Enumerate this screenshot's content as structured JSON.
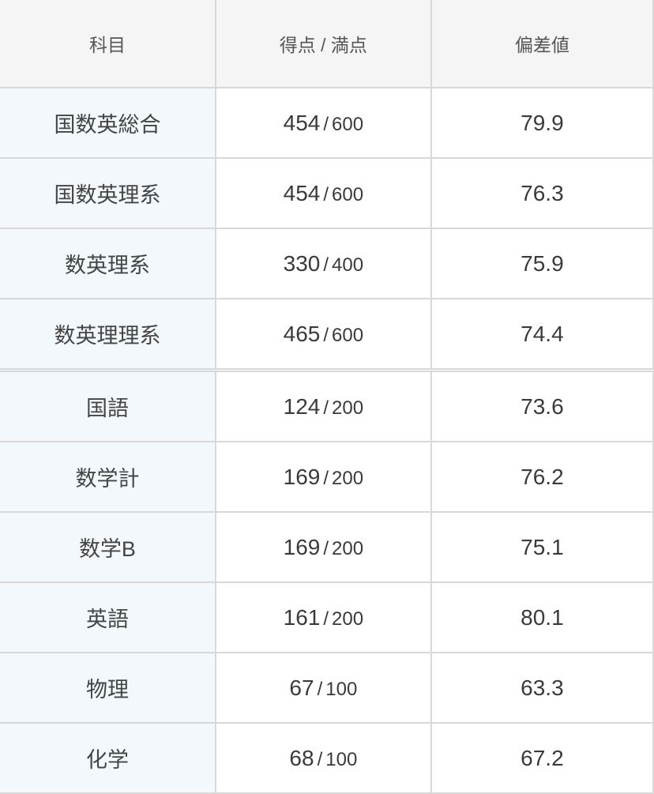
{
  "table": {
    "columns": [
      {
        "key": "subject",
        "label": "科目"
      },
      {
        "key": "score",
        "label": "得点 / 満点"
      },
      {
        "key": "deviation",
        "label": "偏差値"
      }
    ],
    "groups": [
      {
        "rows": [
          {
            "subject": "国数英総合",
            "score": "454",
            "max": "600",
            "deviation": "79.9"
          },
          {
            "subject": "国数英理系",
            "score": "454",
            "max": "600",
            "deviation": "76.3"
          },
          {
            "subject": "数英理系",
            "score": "330",
            "max": "400",
            "deviation": "75.9"
          },
          {
            "subject": "数英理理系",
            "score": "465",
            "max": "600",
            "deviation": "74.4"
          }
        ]
      },
      {
        "rows": [
          {
            "subject": "国語",
            "score": "124",
            "max": "200",
            "deviation": "73.6"
          },
          {
            "subject": "数学計",
            "score": "169",
            "max": "200",
            "deviation": "76.2"
          },
          {
            "subject": "数学B",
            "score": "169",
            "max": "200",
            "deviation": "75.1"
          },
          {
            "subject": "英語",
            "score": "161",
            "max": "200",
            "deviation": "80.1"
          },
          {
            "subject": "物理",
            "score": "67",
            "max": "100",
            "deviation": "63.3"
          },
          {
            "subject": "化学",
            "score": "68",
            "max": "100",
            "deviation": "67.2"
          }
        ]
      }
    ],
    "style": {
      "header_bg": "#f5f5f5",
      "subject_bg": "#f2f8fc",
      "border_color": "#d8d8d8",
      "text_color": "#3a3a3a",
      "header_text_color": "#555555",
      "header_fontsize": 23,
      "subject_fontsize": 27,
      "value_fontsize": 28,
      "max_fontsize": 24
    }
  }
}
